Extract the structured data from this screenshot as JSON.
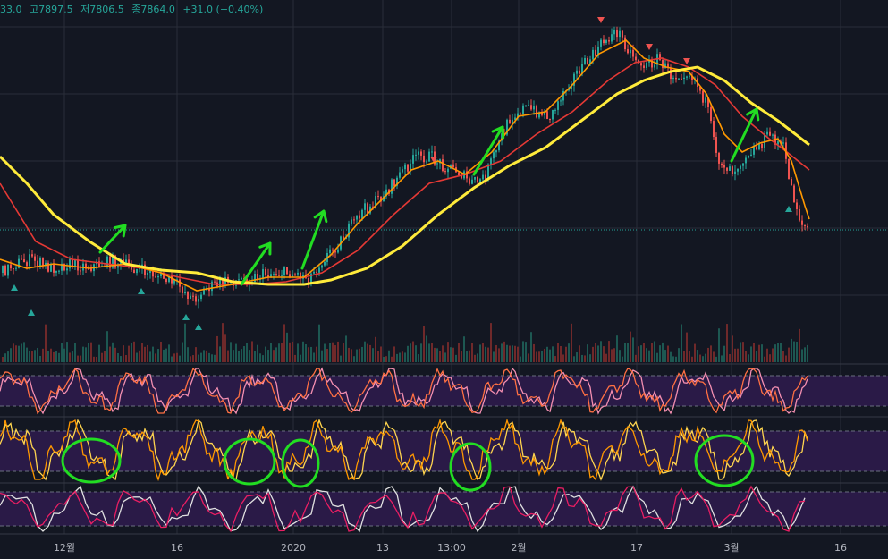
{
  "header": {
    "open": "33.0",
    "high": "고7897.5",
    "low": "저7806.5",
    "close": "종7864.0",
    "change": "+31.0 (+0.40%)"
  },
  "colors": {
    "background": "#131722",
    "grid": "#2a2e39",
    "up": "#26a69a",
    "down": "#ef5350",
    "ma_fast": "#ff9800",
    "ma_mid": "#e53935",
    "ma_slow": "#ffeb3b",
    "osc_fill": "#2a1a47",
    "annotation": "#22dd22"
  },
  "chart_data": {
    "type": "line",
    "x_ticks": [
      "12월",
      "16",
      "2020",
      "13",
      "13:00",
      "2월",
      "17",
      "3월",
      "16"
    ],
    "price": [
      [
        0,
        305
      ],
      [
        15,
        295
      ],
      [
        35,
        290
      ],
      [
        55,
        300
      ],
      [
        75,
        295
      ],
      [
        100,
        298
      ],
      [
        125,
        292
      ],
      [
        150,
        300
      ],
      [
        175,
        308
      ],
      [
        200,
        320
      ],
      [
        215,
        335
      ],
      [
        230,
        322
      ],
      [
        250,
        315
      ],
      [
        275,
        312
      ],
      [
        300,
        305
      ],
      [
        325,
        305
      ],
      [
        345,
        310
      ],
      [
        360,
        290
      ],
      [
        375,
        275
      ],
      [
        390,
        255
      ],
      [
        405,
        235
      ],
      [
        420,
        225
      ],
      [
        435,
        210
      ],
      [
        450,
        190
      ],
      [
        465,
        175
      ],
      [
        480,
        175
      ],
      [
        495,
        185
      ],
      [
        510,
        190
      ],
      [
        525,
        205
      ],
      [
        540,
        200
      ],
      [
        555,
        165
      ],
      [
        570,
        130
      ],
      [
        585,
        120
      ],
      [
        600,
        125
      ],
      [
        615,
        130
      ],
      [
        630,
        100
      ],
      [
        645,
        80
      ],
      [
        660,
        65
      ],
      [
        675,
        45
      ],
      [
        690,
        35
      ],
      [
        705,
        60
      ],
      [
        720,
        75
      ],
      [
        735,
        65
      ],
      [
        750,
        85
      ],
      [
        765,
        80
      ],
      [
        775,
        85
      ],
      [
        790,
        120
      ],
      [
        800,
        175
      ],
      [
        810,
        185
      ],
      [
        820,
        190
      ],
      [
        835,
        170
      ],
      [
        845,
        165
      ],
      [
        860,
        150
      ],
      [
        875,
        165
      ],
      [
        885,
        215
      ],
      [
        895,
        250
      ],
      [
        905,
        258
      ]
    ],
    "ma_fast": [
      [
        0,
        290
      ],
      [
        30,
        300
      ],
      [
        60,
        295
      ],
      [
        100,
        300
      ],
      [
        140,
        295
      ],
      [
        180,
        305
      ],
      [
        220,
        325
      ],
      [
        260,
        318
      ],
      [
        300,
        310
      ],
      [
        340,
        310
      ],
      [
        370,
        285
      ],
      [
        400,
        250
      ],
      [
        430,
        220
      ],
      [
        460,
        190
      ],
      [
        490,
        180
      ],
      [
        520,
        195
      ],
      [
        550,
        170
      ],
      [
        580,
        130
      ],
      [
        610,
        125
      ],
      [
        640,
        95
      ],
      [
        670,
        60
      ],
      [
        700,
        45
      ],
      [
        720,
        65
      ],
      [
        745,
        75
      ],
      [
        770,
        80
      ],
      [
        790,
        105
      ],
      [
        810,
        150
      ],
      [
        830,
        170
      ],
      [
        850,
        160
      ],
      [
        870,
        155
      ],
      [
        885,
        180
      ],
      [
        900,
        230
      ],
      [
        905,
        245
      ]
    ],
    "ma_mid": [
      [
        0,
        205
      ],
      [
        40,
        270
      ],
      [
        80,
        290
      ],
      [
        120,
        295
      ],
      [
        160,
        300
      ],
      [
        200,
        310
      ],
      [
        240,
        318
      ],
      [
        280,
        318
      ],
      [
        320,
        315
      ],
      [
        360,
        305
      ],
      [
        400,
        280
      ],
      [
        440,
        240
      ],
      [
        480,
        205
      ],
      [
        520,
        195
      ],
      [
        560,
        180
      ],
      [
        600,
        150
      ],
      [
        640,
        125
      ],
      [
        680,
        90
      ],
      [
        710,
        70
      ],
      [
        740,
        65
      ],
      [
        770,
        75
      ],
      [
        800,
        95
      ],
      [
        830,
        130
      ],
      [
        860,
        155
      ],
      [
        880,
        170
      ],
      [
        905,
        190
      ]
    ],
    "ma_slow": [
      [
        0,
        175
      ],
      [
        30,
        205
      ],
      [
        60,
        240
      ],
      [
        100,
        270
      ],
      [
        140,
        295
      ],
      [
        180,
        302
      ],
      [
        220,
        305
      ],
      [
        260,
        315
      ],
      [
        300,
        318
      ],
      [
        340,
        318
      ],
      [
        370,
        313
      ],
      [
        410,
        300
      ],
      [
        450,
        275
      ],
      [
        490,
        240
      ],
      [
        530,
        210
      ],
      [
        570,
        185
      ],
      [
        610,
        165
      ],
      [
        650,
        135
      ],
      [
        690,
        105
      ],
      [
        720,
        90
      ],
      [
        750,
        80
      ],
      [
        780,
        75
      ],
      [
        810,
        90
      ],
      [
        840,
        115
      ],
      [
        870,
        135
      ],
      [
        905,
        162
      ]
    ],
    "hline": 257
  }
}
